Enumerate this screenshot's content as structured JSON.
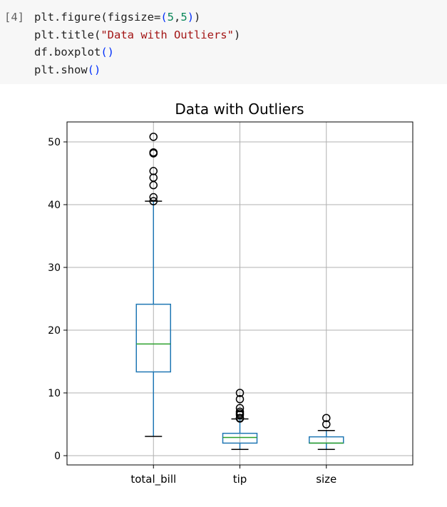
{
  "cell": {
    "prompt": "[4]",
    "code_lines": [
      [
        {
          "t": "plt.figure(figsize="
        },
        {
          "t": "(",
          "c": "paren"
        },
        {
          "t": "5",
          "c": "num"
        },
        {
          "t": ","
        },
        {
          "t": "5",
          "c": "num"
        },
        {
          "t": ")",
          "c": "paren"
        },
        {
          "t": ")"
        }
      ],
      [
        {
          "t": "plt.title("
        },
        {
          "t": "\"Data with Outliers\"",
          "c": "str"
        },
        {
          "t": ")"
        }
      ],
      [
        {
          "t": "df.boxplot"
        },
        {
          "t": "()",
          "c": "paren"
        }
      ],
      [
        {
          "t": "plt.show"
        },
        {
          "t": "()",
          "c": "paren"
        }
      ]
    ]
  },
  "chart_data": {
    "type": "boxplot",
    "title": "Data with Outliers",
    "xlabel": "",
    "ylabel": "",
    "categories": [
      "total_bill",
      "tip",
      "size"
    ],
    "ylim": [
      -1.5,
      53
    ],
    "yticks": [
      0,
      10,
      20,
      30,
      40,
      50
    ],
    "grid": true,
    "colors": {
      "box": "#1f77b4",
      "median": "#2ca02c",
      "whisker": "#1f77b4",
      "cap": "#000000",
      "flier": "#000000",
      "grid": "#b0b0b0"
    },
    "boxes": [
      {
        "name": "total_bill",
        "whisker_low": 3.07,
        "q1": 13.35,
        "median": 17.8,
        "q3": 24.13,
        "whisker_high": 40.55,
        "outliers": [
          40.55,
          41.19,
          43.11,
          44.3,
          45.35,
          48.17,
          48.27,
          48.33,
          50.81
        ]
      },
      {
        "name": "tip",
        "whisker_low": 1.0,
        "q1": 2.0,
        "median": 2.9,
        "q3": 3.56,
        "whisker_high": 5.85,
        "outliers": [
          5.92,
          6.0,
          6.5,
          6.73,
          7.0,
          7.58,
          9.0,
          10.0
        ]
      },
      {
        "name": "size",
        "whisker_low": 1,
        "q1": 2,
        "median": 2,
        "q3": 3,
        "whisker_high": 4,
        "outliers": [
          5,
          6
        ]
      }
    ]
  }
}
